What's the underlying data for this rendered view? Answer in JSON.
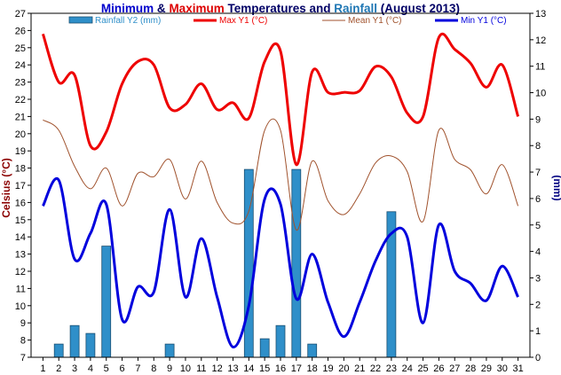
{
  "chart_data": {
    "type": "bar+line",
    "title_segments": [
      {
        "text": "Minimum",
        "color": "#0000cc"
      },
      {
        "text": " & ",
        "color": "#000066"
      },
      {
        "text": "Maximum",
        "color": "#dd0000"
      },
      {
        "text": " Temperatures and ",
        "color": "#000066"
      },
      {
        "text": "Rainfall",
        "color": "#1f77b4"
      },
      {
        "text": " (August 2013)",
        "color": "#000066"
      }
    ],
    "ylabel": "Celsius (°C)",
    "ylabel_color": "#8b0000",
    "y2label": "(mm)",
    "y2label_color": "#000080",
    "ylim": [
      7,
      27
    ],
    "y2lim": [
      0,
      13
    ],
    "xlim": [
      1,
      31
    ],
    "x": [
      1,
      2,
      3,
      4,
      5,
      6,
      7,
      8,
      9,
      10,
      11,
      12,
      13,
      14,
      15,
      16,
      17,
      18,
      19,
      20,
      21,
      22,
      23,
      24,
      25,
      26,
      27,
      28,
      29,
      30,
      31
    ],
    "yticks": [
      7,
      8,
      9,
      10,
      11,
      12,
      13,
      14,
      15,
      16,
      17,
      18,
      19,
      20,
      21,
      22,
      23,
      24,
      25,
      26,
      27
    ],
    "y2ticks": [
      0,
      1,
      2,
      3,
      4,
      5,
      6,
      7,
      8,
      9,
      10,
      11,
      12,
      13
    ],
    "grid": false,
    "legend_position": "top",
    "series": [
      {
        "name": "Rainfall Y2 (mm)",
        "kind": "bar",
        "axis": "y2",
        "color": "#2f8fc9",
        "values": [
          0,
          0.5,
          1.2,
          0.9,
          4.2,
          0,
          0,
          0,
          0.5,
          0,
          0,
          0,
          0,
          7.1,
          0.7,
          1.2,
          7.1,
          0.5,
          0,
          0,
          0,
          0,
          5.5,
          0,
          0,
          0,
          0,
          0,
          0,
          0,
          0
        ]
      },
      {
        "name": "Max Y1 (°C)",
        "kind": "line",
        "axis": "y",
        "color": "#ee0000",
        "values": [
          25.8,
          23.0,
          23.4,
          19.3,
          20.1,
          22.9,
          24.2,
          24.0,
          21.5,
          21.7,
          22.9,
          21.4,
          21.8,
          20.9,
          24.2,
          24.8,
          18.2,
          23.6,
          22.4,
          22.4,
          22.5,
          23.9,
          23.3,
          21.2,
          21.0,
          25.6,
          24.9,
          24.1,
          22.7,
          24.0,
          21.0
        ]
      },
      {
        "name": "Mean Y1 (°C)",
        "kind": "line",
        "axis": "y",
        "color": "#a0522d",
        "values": [
          20.8,
          20.2,
          18.1,
          16.8,
          18.0,
          15.8,
          17.7,
          17.5,
          18.5,
          16.2,
          18.4,
          16.0,
          14.8,
          15.5,
          20.2,
          20.2,
          14.4,
          18.4,
          16.1,
          15.3,
          16.5,
          18.3,
          18.7,
          17.8,
          14.9,
          20.2,
          18.5,
          17.9,
          16.5,
          18.2,
          15.8
        ]
      },
      {
        "name": "Min Y1 (°C)",
        "kind": "line",
        "axis": "y",
        "color": "#0000dd",
        "values": [
          15.8,
          17.3,
          12.7,
          14.2,
          15.9,
          9.2,
          11.1,
          10.8,
          15.6,
          10.5,
          13.9,
          10.5,
          7.6,
          10.0,
          16.2,
          15.9,
          10.4,
          13.0,
          10.2,
          8.2,
          10.2,
          12.6,
          14.2,
          14.0,
          9.0,
          14.7,
          12.0,
          11.3,
          10.3,
          12.3,
          10.5
        ]
      }
    ]
  }
}
